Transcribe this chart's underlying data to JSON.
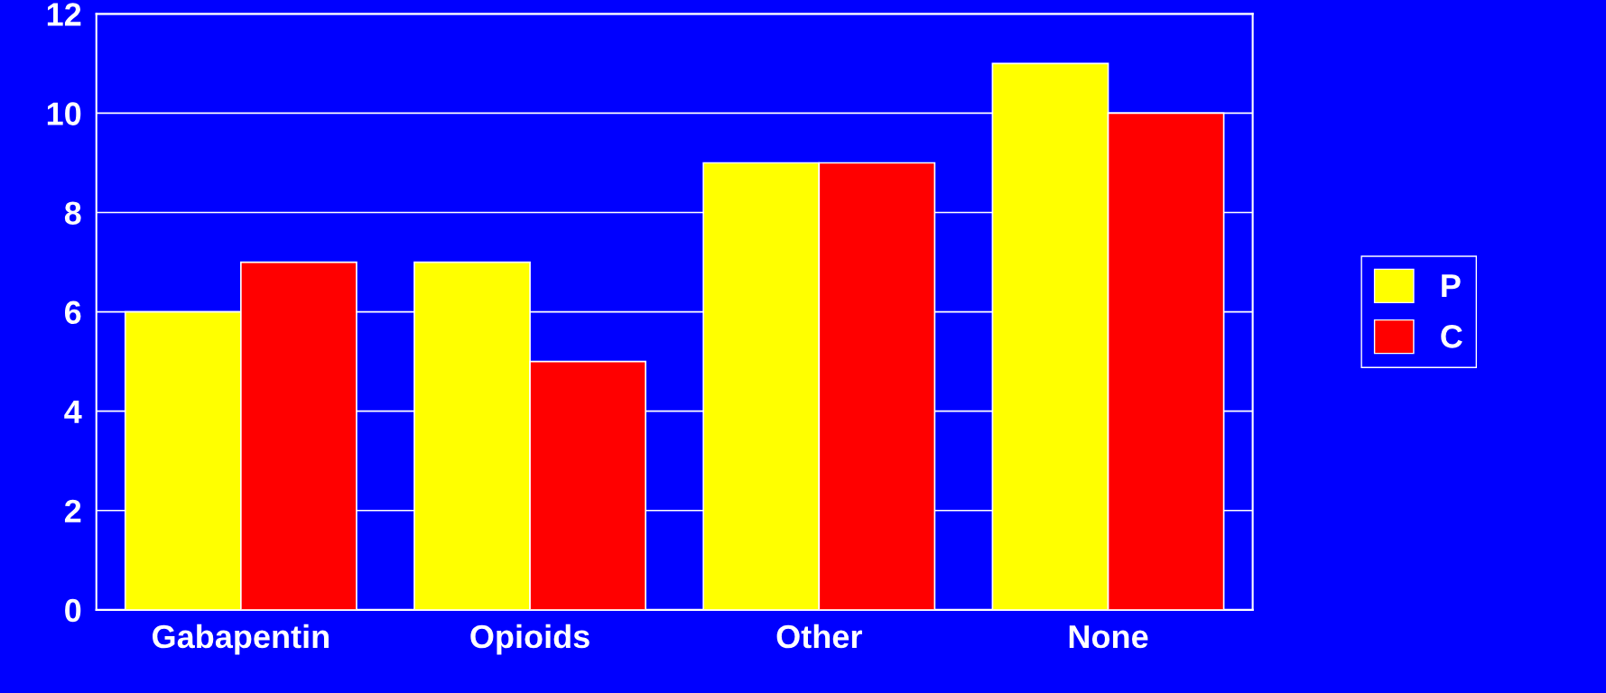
{
  "chart_data": {
    "type": "bar",
    "categories": [
      "Gabapentin",
      "Opioids",
      "Other",
      "None"
    ],
    "series": [
      {
        "name": "P",
        "color": "#ffff00",
        "values": [
          6,
          7,
          9,
          11
        ]
      },
      {
        "name": "C",
        "color": "#ff0000",
        "values": [
          7,
          5,
          9,
          10
        ]
      }
    ],
    "ylim": [
      0,
      12
    ],
    "yticks": [
      0,
      2,
      4,
      6,
      8,
      10,
      12
    ],
    "grid": "y",
    "legend": "right"
  }
}
